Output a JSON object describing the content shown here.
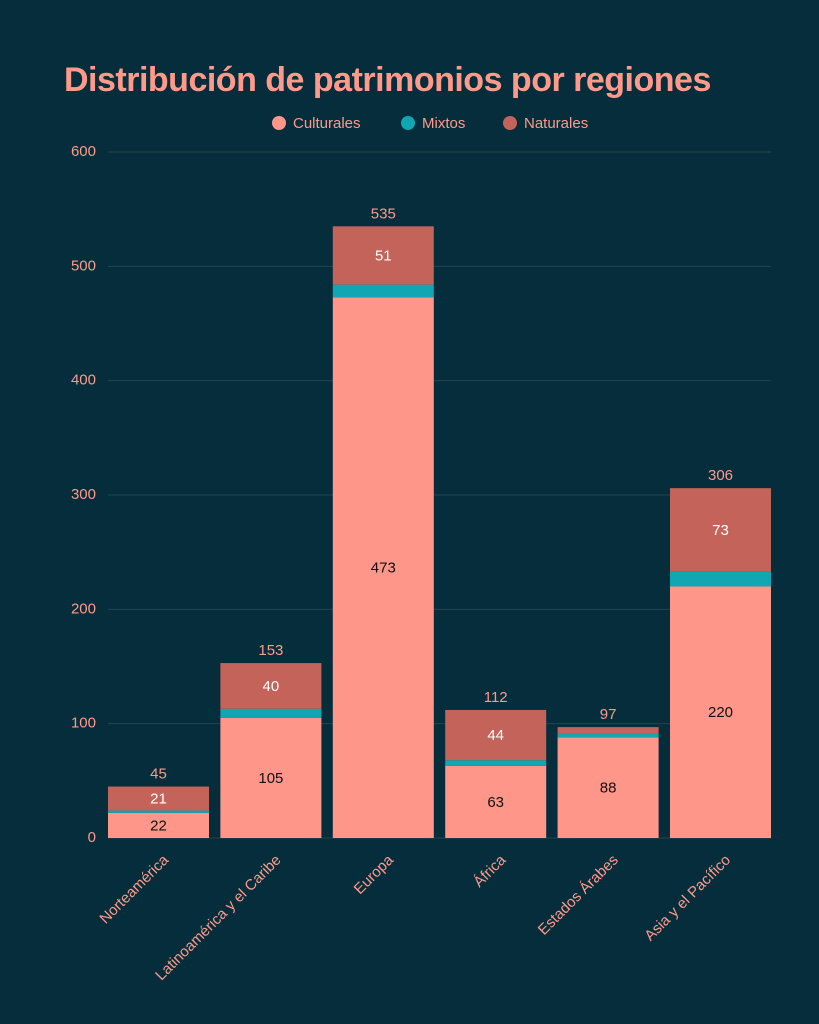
{
  "chart_data": {
    "type": "stacked_bar",
    "title": "Distribución de patrimonios por regiones",
    "categories": [
      "Norteamérica",
      "Latinoamérica y el Caribe",
      "Europa",
      "África",
      "Estados Árabes",
      "Asia y el Pacífico"
    ],
    "series": [
      {
        "name": "Culturales",
        "color": "#ff968a",
        "values": [
          22,
          105,
          473,
          63,
          88,
          220
        ]
      },
      {
        "name": "Mixtos",
        "color": "#11a6b4",
        "values": [
          2,
          8,
          11,
          5,
          3,
          13
        ]
      },
      {
        "name": "Naturales",
        "color": "#c4635a",
        "values": [
          21,
          40,
          51,
          44,
          6,
          73
        ]
      }
    ],
    "totals": [
      45,
      153,
      535,
      112,
      97,
      306
    ],
    "ylim": [
      0,
      600
    ],
    "yticks": [
      0,
      100,
      200,
      300,
      400,
      500,
      600
    ],
    "grid": true,
    "legend": "top"
  }
}
